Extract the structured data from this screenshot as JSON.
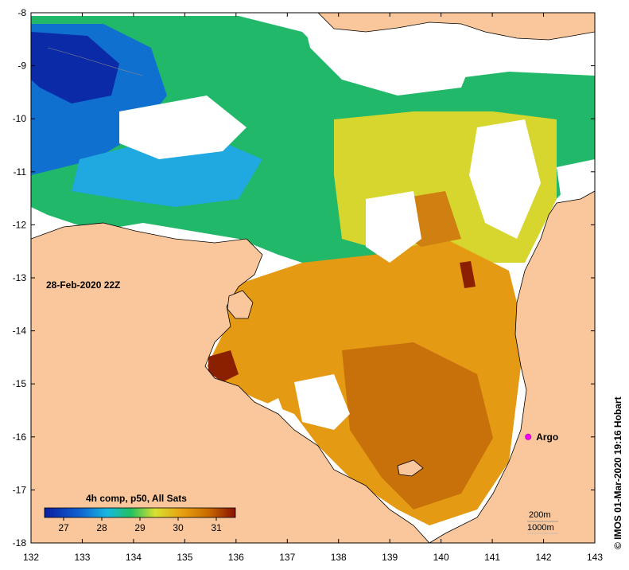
{
  "map": {
    "timestamp": "28-Feb-2020 22Z",
    "credit": "© IMOS 01-Mar-2020 19:16 Hobart",
    "colorbar": {
      "title": "4h comp, p50, All Sats",
      "ticks": [
        "27",
        "28",
        "29",
        "30",
        "31"
      ]
    },
    "argo": {
      "label": "Argo",
      "lon": 141.7,
      "lat": -16.0,
      "color": "#ff00ff"
    },
    "depth_contours": [
      "200m",
      "1000m"
    ],
    "colors": {
      "land": "#f9c79b",
      "cloud": "#ffffff",
      "cold": "#0a1ea0",
      "cool": "#1aa0e0",
      "mid": "#20c070",
      "warm": "#d8e030",
      "hot": "#e8a010",
      "hotter": "#c86a00",
      "hottest": "#8a1000"
    }
  },
  "chart_data": {
    "type": "heatmap",
    "title": "28-Feb-2020 22Z",
    "xlabel": "",
    "ylabel": "",
    "x_ticks": [
      "132",
      "133",
      "134",
      "135",
      "136",
      "137",
      "138",
      "139",
      "140",
      "141",
      "142",
      "143"
    ],
    "y_ticks": [
      "-8",
      "-9",
      "-10",
      "-11",
      "-12",
      "-13",
      "-14",
      "-15",
      "-16",
      "-17",
      "-18"
    ],
    "xlim": [
      132,
      143
    ],
    "ylim": [
      -18,
      -8
    ],
    "color_range": [
      26.5,
      31.5
    ],
    "legend": "bottom-left"
  }
}
